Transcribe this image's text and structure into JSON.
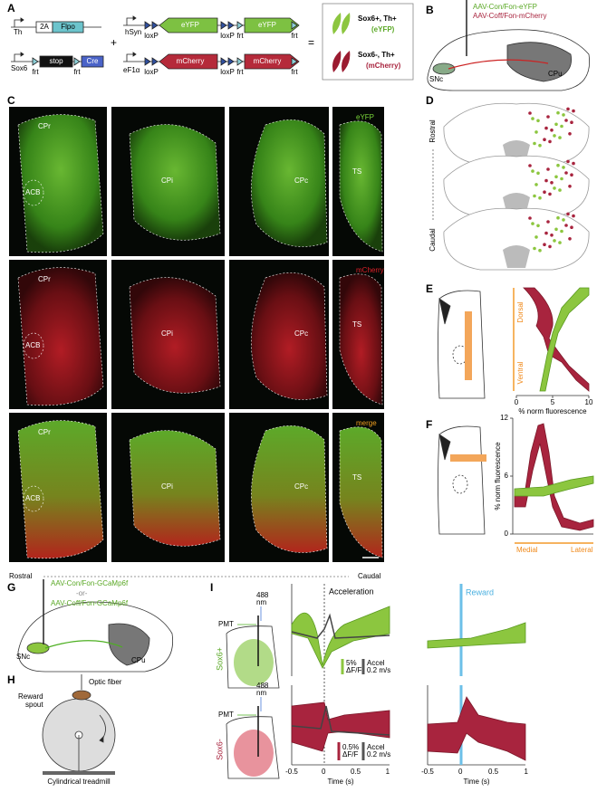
{
  "panel_a": {
    "label": "A",
    "th": "Th",
    "two_a": "2A",
    "flpo": "Flpo",
    "sox6": "Sox6",
    "frt": "frt",
    "stop": "stop",
    "cre": "Cre",
    "plus": "+",
    "hsyn": "hSyn",
    "loxp": "loxP",
    "eyfp": "eYFP",
    "ef1a": "eF1α",
    "mcherry": "mCherry",
    "equals": "=",
    "sox6_pos": "Sox6+, Th+",
    "eyfp_paren": "(eYFP)",
    "sox6_neg": "Sox6-, Th+",
    "mcherry_paren": "(mCherry)"
  },
  "panel_b": {
    "label": "B",
    "virus_con": "AAV-Con/Fon-eYFP",
    "virus_coff": "AAV-Coff/Fon-mCherry",
    "snc": "SNc",
    "cpu": "CPu"
  },
  "panel_c": {
    "label": "C",
    "regions": {
      "cpr": "CPr",
      "acb": "ACB",
      "cpi": "CPi",
      "cpc": "CPc",
      "ts": "TS"
    },
    "channels": [
      "eYFP",
      "mCherry",
      "merge"
    ],
    "rostral": "Rostral",
    "caudal": "Caudal"
  },
  "panel_d": {
    "label": "D",
    "rostral": "Rostral",
    "caudal": "Caudal"
  },
  "panel_e": {
    "label": "E",
    "dorsal": "Dorsal",
    "ventral": "Ventral",
    "xticks": [
      "0",
      "5",
      "10"
    ],
    "xlabel": "% norm fluorescence"
  },
  "panel_f": {
    "label": "F",
    "yticks": [
      "0",
      "6",
      "12"
    ],
    "ylabel": "% norm fluorescence",
    "medial": "Medial",
    "lateral": "Lateral"
  },
  "panel_g": {
    "label": "G",
    "virus_con": "AAV-Con/Fon-GCaMp6f",
    "or": "-or-",
    "virus_coff": "AAV-Coff/Fon-GCaMp6f",
    "snc": "SNc",
    "cpu": "CPu"
  },
  "panel_h": {
    "label": "H",
    "optic_fiber": "Optic fiber",
    "reward_spout": [
      "Reward",
      "spout"
    ],
    "treadmill": "Cylindrical treadmill"
  },
  "panel_i": {
    "label": "I",
    "wavelength": [
      "488",
      "nm"
    ],
    "pmt": "PMT",
    "groups": [
      "Sox6+",
      "Sox6-"
    ],
    "acceleration": "Acceleration",
    "reward": "Reward",
    "scale_top": [
      "5%",
      "ΔF/F"
    ],
    "scale_bottom": [
      "0.5%",
      "ΔF/F"
    ],
    "accel_scale": [
      "Accel",
      "0.2 m/s"
    ],
    "xticks": [
      "-0.5",
      "0",
      "0.5",
      "1"
    ],
    "xlabel": "Time (s)"
  }
}
